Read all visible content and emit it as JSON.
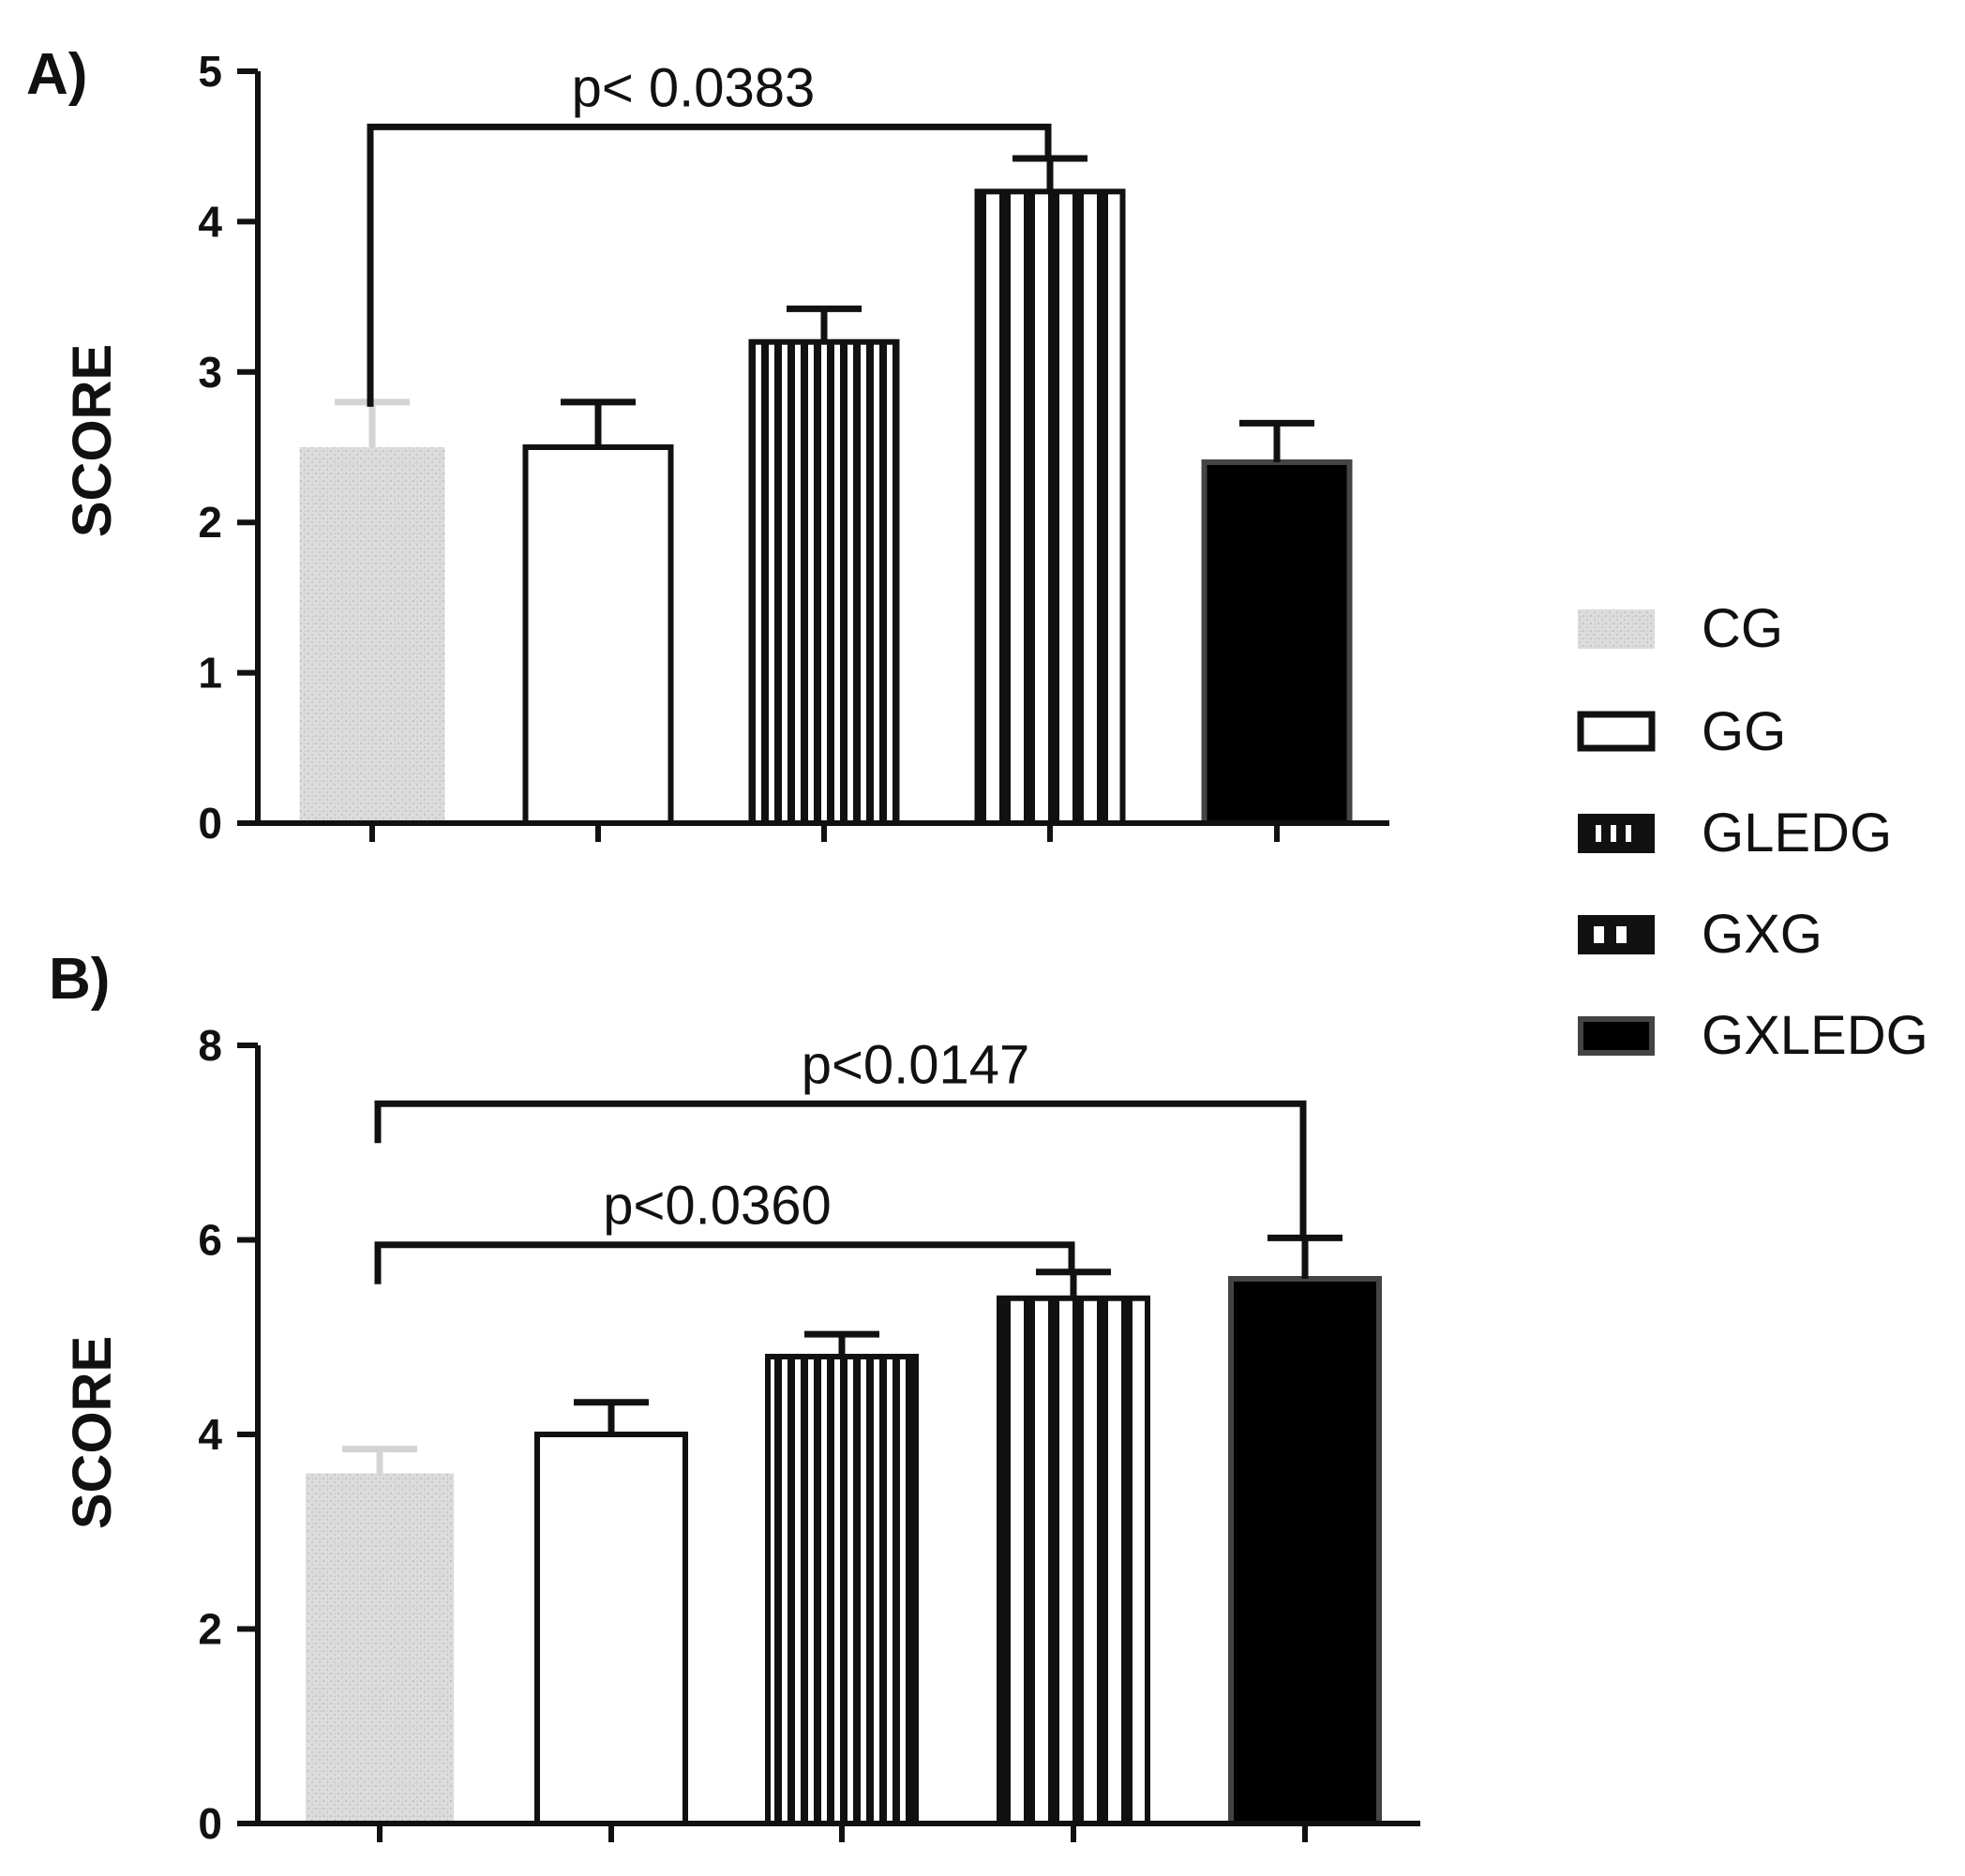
{
  "chart_data": [
    {
      "panel": "A)",
      "type": "bar",
      "ylabel": "SCORE",
      "ylim": [
        0,
        5
      ],
      "yticks": [
        0,
        1,
        2,
        3,
        4,
        5
      ],
      "categories": [
        "CG",
        "GG",
        "GLEDG",
        "GXG",
        "GXLEDG"
      ],
      "values": [
        2.5,
        2.5,
        3.2,
        4.2,
        2.4
      ],
      "errors": [
        0.3,
        0.3,
        0.22,
        0.22,
        0.26
      ],
      "comparisons": [
        {
          "from": "CG",
          "to": "GXG",
          "label": "p< 0.0383",
          "y": 4.63
        }
      ]
    },
    {
      "panel": "B)",
      "type": "bar",
      "ylabel": "SCORE",
      "ylim": [
        0,
        8
      ],
      "yticks": [
        0,
        2,
        4,
        6,
        8
      ],
      "categories": [
        "CG",
        "GG",
        "GLEDG",
        "GXG",
        "GXLEDG"
      ],
      "values": [
        3.6,
        4.0,
        4.8,
        5.4,
        5.6
      ],
      "errors": [
        0.25,
        0.33,
        0.23,
        0.27,
        0.42
      ],
      "comparisons": [
        {
          "from": "CG",
          "to": "GXLEDG",
          "label": "p<0.0147",
          "y": 7.4
        },
        {
          "from": "CG",
          "to": "GXG",
          "label": "p<0.0360",
          "y": 5.95
        }
      ]
    }
  ],
  "legend": [
    {
      "label": "CG",
      "style": "stipple"
    },
    {
      "label": "GG",
      "style": "open"
    },
    {
      "label": "GLEDG",
      "style": "fine-stripes"
    },
    {
      "label": "GXG",
      "style": "wide-stripes"
    },
    {
      "label": "GXLEDG",
      "style": "solid"
    }
  ],
  "colors": {
    "stipple": "#d9d9d9",
    "stroke": "#111111",
    "solid": "#000000"
  }
}
